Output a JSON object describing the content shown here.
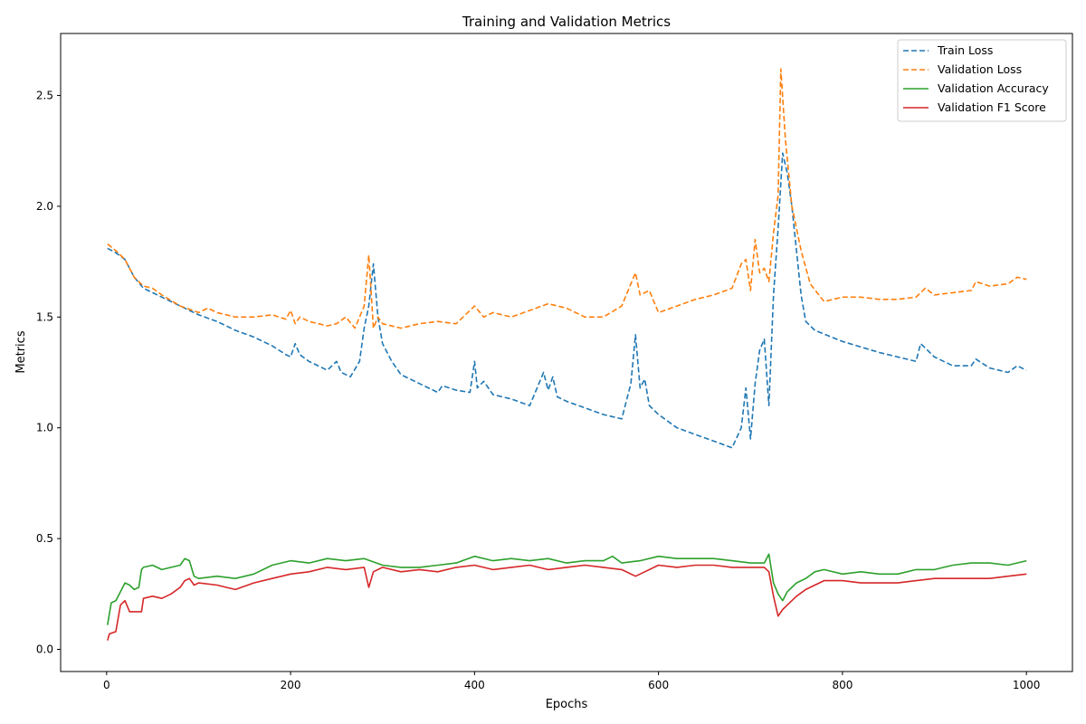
{
  "chart_data": {
    "type": "line",
    "title": "Training and Validation Metrics",
    "xlabel": "Epochs",
    "ylabel": "Metrics",
    "xlim": [
      -50,
      1050
    ],
    "ylim": [
      -0.1,
      2.78
    ],
    "xticks": [
      0,
      200,
      400,
      600,
      800,
      1000
    ],
    "yticks": [
      0.0,
      0.5,
      1.0,
      1.5,
      2.0,
      2.5
    ],
    "grid": false,
    "legend_position": "top-right",
    "series": [
      {
        "name": "Train Loss",
        "color": "#1f77b4",
        "style": "dashed",
        "x": [
          1,
          10,
          20,
          30,
          40,
          50,
          60,
          80,
          100,
          120,
          140,
          160,
          180,
          195,
          200,
          205,
          210,
          220,
          240,
          250,
          255,
          265,
          275,
          280,
          285,
          290,
          295,
          300,
          310,
          320,
          340,
          360,
          365,
          380,
          395,
          400,
          403,
          410,
          420,
          440,
          460,
          470,
          475,
          480,
          485,
          490,
          500,
          520,
          540,
          560,
          570,
          575,
          580,
          585,
          590,
          600,
          620,
          640,
          660,
          680,
          690,
          695,
          700,
          705,
          710,
          715,
          720,
          725,
          730,
          735,
          740,
          745,
          750,
          755,
          760,
          770,
          800,
          840,
          880,
          885,
          890,
          900,
          920,
          940,
          945,
          960,
          980,
          990,
          1000
        ],
        "values": [
          1.81,
          1.79,
          1.76,
          1.68,
          1.63,
          1.61,
          1.59,
          1.55,
          1.51,
          1.48,
          1.44,
          1.41,
          1.37,
          1.33,
          1.32,
          1.38,
          1.33,
          1.3,
          1.26,
          1.3,
          1.25,
          1.23,
          1.3,
          1.45,
          1.55,
          1.74,
          1.5,
          1.38,
          1.3,
          1.24,
          1.2,
          1.16,
          1.19,
          1.17,
          1.16,
          1.3,
          1.18,
          1.21,
          1.15,
          1.13,
          1.1,
          1.2,
          1.25,
          1.17,
          1.23,
          1.14,
          1.12,
          1.09,
          1.06,
          1.04,
          1.2,
          1.42,
          1.18,
          1.22,
          1.1,
          1.06,
          1.0,
          0.97,
          0.94,
          0.91,
          1.0,
          1.18,
          0.95,
          1.2,
          1.35,
          1.4,
          1.1,
          1.6,
          1.9,
          2.24,
          2.15,
          2.0,
          1.8,
          1.6,
          1.48,
          1.44,
          1.39,
          1.34,
          1.3,
          1.38,
          1.36,
          1.32,
          1.28,
          1.28,
          1.31,
          1.27,
          1.25,
          1.28,
          1.26
        ]
      },
      {
        "name": "Validation Loss",
        "color": "#ff7f0e",
        "style": "dashed",
        "x": [
          1,
          10,
          20,
          30,
          40,
          50,
          60,
          80,
          100,
          110,
          120,
          140,
          160,
          180,
          195,
          200,
          205,
          210,
          220,
          240,
          250,
          260,
          270,
          280,
          285,
          290,
          295,
          300,
          320,
          340,
          360,
          380,
          400,
          410,
          420,
          440,
          460,
          480,
          500,
          520,
          540,
          560,
          570,
          575,
          580,
          590,
          600,
          620,
          640,
          660,
          680,
          690,
          695,
          700,
          705,
          710,
          715,
          720,
          725,
          730,
          733,
          738,
          745,
          755,
          765,
          780,
          800,
          820,
          840,
          860,
          880,
          890,
          900,
          920,
          940,
          945,
          960,
          980,
          990,
          1000
        ],
        "values": [
          1.83,
          1.8,
          1.76,
          1.68,
          1.64,
          1.63,
          1.6,
          1.55,
          1.52,
          1.54,
          1.52,
          1.5,
          1.5,
          1.51,
          1.49,
          1.53,
          1.47,
          1.5,
          1.48,
          1.46,
          1.47,
          1.5,
          1.45,
          1.55,
          1.78,
          1.45,
          1.5,
          1.47,
          1.45,
          1.47,
          1.48,
          1.47,
          1.55,
          1.5,
          1.52,
          1.5,
          1.53,
          1.56,
          1.54,
          1.5,
          1.5,
          1.55,
          1.65,
          1.7,
          1.6,
          1.62,
          1.52,
          1.55,
          1.58,
          1.6,
          1.63,
          1.74,
          1.76,
          1.62,
          1.85,
          1.7,
          1.72,
          1.66,
          1.88,
          2.05,
          2.62,
          2.3,
          2.0,
          1.8,
          1.65,
          1.57,
          1.59,
          1.59,
          1.58,
          1.58,
          1.59,
          1.63,
          1.6,
          1.61,
          1.62,
          1.66,
          1.64,
          1.65,
          1.68,
          1.67
        ]
      },
      {
        "name": "Validation Accuracy",
        "color": "#2ca02c",
        "style": "solid",
        "x": [
          1,
          5,
          10,
          15,
          20,
          25,
          30,
          35,
          38,
          40,
          50,
          60,
          70,
          80,
          85,
          90,
          95,
          100,
          120,
          140,
          160,
          180,
          200,
          220,
          240,
          260,
          280,
          300,
          320,
          340,
          360,
          380,
          400,
          420,
          440,
          460,
          480,
          500,
          520,
          540,
          550,
          560,
          580,
          600,
          620,
          640,
          660,
          680,
          700,
          715,
          720,
          725,
          730,
          735,
          740,
          745,
          750,
          760,
          770,
          780,
          800,
          820,
          840,
          860,
          880,
          900,
          920,
          940,
          960,
          980,
          1000
        ],
        "values": [
          0.11,
          0.21,
          0.22,
          0.26,
          0.3,
          0.29,
          0.27,
          0.28,
          0.36,
          0.37,
          0.38,
          0.36,
          0.37,
          0.38,
          0.41,
          0.4,
          0.33,
          0.32,
          0.33,
          0.32,
          0.34,
          0.38,
          0.4,
          0.39,
          0.41,
          0.4,
          0.41,
          0.38,
          0.37,
          0.37,
          0.38,
          0.39,
          0.42,
          0.4,
          0.41,
          0.4,
          0.41,
          0.39,
          0.4,
          0.4,
          0.42,
          0.39,
          0.4,
          0.42,
          0.41,
          0.41,
          0.41,
          0.4,
          0.39,
          0.39,
          0.43,
          0.3,
          0.25,
          0.22,
          0.26,
          0.28,
          0.3,
          0.32,
          0.35,
          0.36,
          0.34,
          0.35,
          0.34,
          0.34,
          0.36,
          0.36,
          0.38,
          0.39,
          0.39,
          0.38,
          0.4
        ]
      },
      {
        "name": "Validation F1 Score",
        "color": "#d62728",
        "style": "solid",
        "x": [
          1,
          3,
          10,
          15,
          20,
          25,
          30,
          38,
          40,
          50,
          60,
          70,
          80,
          85,
          90,
          95,
          100,
          120,
          140,
          160,
          180,
          200,
          220,
          240,
          260,
          280,
          285,
          290,
          300,
          320,
          340,
          360,
          380,
          400,
          420,
          440,
          460,
          480,
          500,
          520,
          540,
          560,
          575,
          580,
          600,
          620,
          640,
          660,
          680,
          700,
          715,
          720,
          725,
          730,
          735,
          740,
          745,
          750,
          760,
          770,
          780,
          800,
          820,
          840,
          860,
          880,
          900,
          920,
          940,
          960,
          980,
          1000
        ],
        "values": [
          0.04,
          0.07,
          0.08,
          0.2,
          0.22,
          0.17,
          0.17,
          0.17,
          0.23,
          0.24,
          0.23,
          0.25,
          0.28,
          0.31,
          0.32,
          0.29,
          0.3,
          0.29,
          0.27,
          0.3,
          0.32,
          0.34,
          0.35,
          0.37,
          0.36,
          0.37,
          0.28,
          0.35,
          0.37,
          0.35,
          0.36,
          0.35,
          0.37,
          0.38,
          0.36,
          0.37,
          0.38,
          0.36,
          0.37,
          0.38,
          0.37,
          0.36,
          0.33,
          0.34,
          0.38,
          0.37,
          0.38,
          0.38,
          0.37,
          0.37,
          0.37,
          0.35,
          0.24,
          0.15,
          0.18,
          0.2,
          0.22,
          0.24,
          0.27,
          0.29,
          0.31,
          0.31,
          0.3,
          0.3,
          0.3,
          0.31,
          0.32,
          0.32,
          0.32,
          0.32,
          0.33,
          0.34
        ]
      }
    ]
  }
}
